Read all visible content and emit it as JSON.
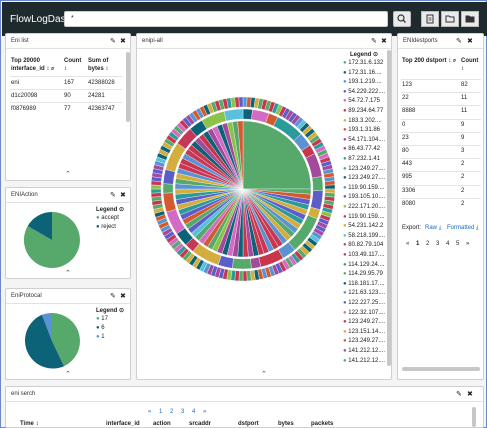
{
  "app": {
    "title": "FlowLogDash"
  },
  "search": {
    "value": "*"
  },
  "toolbar": {
    "icons": [
      "search-icon",
      "document-icon",
      "open-folder-icon",
      "folder-icon"
    ]
  },
  "eni_list": {
    "title": "Eni list",
    "headers": [
      "Top 20000 interface_id ↕ ⌕",
      "Count ↕",
      "Sum of bytes ↕"
    ],
    "rows": [
      [
        "eni",
        "167",
        "42388028"
      ],
      [
        "d1c20098",
        "90",
        "24281"
      ],
      [
        "f0876989",
        "77",
        "42363747"
      ]
    ]
  },
  "eni_action": {
    "title": "ENIAction",
    "legend_title": "Legend",
    "items": [
      {
        "label": "accept",
        "color": "#57a86b"
      },
      {
        "label": "reject",
        "color": "#0c6277"
      }
    ]
  },
  "eni_protocol": {
    "title": "EniProtocal",
    "legend_title": "Legend",
    "items": [
      {
        "label": "17",
        "color": "#57a86b"
      },
      {
        "label": "6",
        "color": "#0c6277"
      },
      {
        "label": "1",
        "color": "#5a92d2"
      }
    ]
  },
  "enipi_all": {
    "title": "enipi-all",
    "legend_title": "Legend",
    "legend": [
      {
        "label": "172.31.6.132",
        "color": "#57a86b"
      },
      {
        "label": "172.31.16....",
        "color": "#0c6277"
      },
      {
        "label": "193.1.219....",
        "color": "#5a92d2"
      },
      {
        "label": "54.229.222....",
        "color": "#5b5ec9"
      },
      {
        "label": "54.72.7.175",
        "color": "#d36bc4"
      },
      {
        "label": "89.234.64.77",
        "color": "#c9354b"
      },
      {
        "label": "183.3.202....",
        "color": "#d4ad3f"
      },
      {
        "label": "193.1.31.86",
        "color": "#d35a2e"
      },
      {
        "label": "54.171.104....",
        "color": "#a34a9c"
      },
      {
        "label": "86.43.77.42",
        "color": "#c7375a"
      },
      {
        "label": "87.232.1.41",
        "color": "#2b9a9a"
      },
      {
        "label": "123.249.27....",
        "color": "#57a86b"
      },
      {
        "label": "123.249.27....",
        "color": "#0c6277"
      },
      {
        "label": "119.90.159....",
        "color": "#5a92d2"
      },
      {
        "label": "193.105.10....",
        "color": "#5b5ec9"
      },
      {
        "label": "222.171.20....",
        "color": "#8bc34a"
      },
      {
        "label": "119.90.159....",
        "color": "#c9354b"
      },
      {
        "label": "54.231.142.2",
        "color": "#d4ad3f"
      },
      {
        "label": "58.218.199....",
        "color": "#5bc0de"
      },
      {
        "label": "80.82.79.104",
        "color": "#a34a9c"
      },
      {
        "label": "103.49.117....",
        "color": "#c7375a"
      },
      {
        "label": "114.129.24....",
        "color": "#2b9a9a"
      },
      {
        "label": "114.29.95.79",
        "color": "#57a86b"
      },
      {
        "label": "118.181.17....",
        "color": "#0c6277"
      },
      {
        "label": "121.63.123....",
        "color": "#5a92d2"
      },
      {
        "label": "122.227.25....",
        "color": "#5b5ec9"
      },
      {
        "label": "122.32.107....",
        "color": "#d36bc4"
      },
      {
        "label": "123.249.27....",
        "color": "#c9354b"
      },
      {
        "label": "123.151.14....",
        "color": "#d4ad3f"
      },
      {
        "label": "123.249.27....",
        "color": "#d35a2e"
      },
      {
        "label": "141.212.12....",
        "color": "#a34a9c"
      },
      {
        "label": "141.212.12....",
        "color": "#57a86b"
      }
    ]
  },
  "eni_dstports": {
    "title": "ENIdestports",
    "headers": [
      "Top 200 dstport ↕ ⌕",
      "Count ↕"
    ],
    "rows": [
      [
        "123",
        "82"
      ],
      [
        "22",
        "11"
      ],
      [
        "8888",
        "11"
      ],
      [
        "0",
        "9"
      ],
      [
        "23",
        "9"
      ],
      [
        "80",
        "3"
      ],
      [
        "443",
        "2"
      ],
      [
        "995",
        "2"
      ],
      [
        "3306",
        "2"
      ],
      [
        "8080",
        "2"
      ]
    ],
    "export_label": "Export:",
    "raw_label": "Raw",
    "formatted_label": "Formatted",
    "pages": [
      "«",
      "1",
      "2",
      "3",
      "4",
      "5",
      "»"
    ]
  },
  "eni_search": {
    "title": "eni serch",
    "pages": [
      "«",
      "1",
      "2",
      "3",
      "4",
      "»"
    ],
    "columns": [
      "Time ↕",
      "interface_id",
      "action",
      "srcaddr",
      "dstport",
      "bytes",
      "packets"
    ]
  }
}
